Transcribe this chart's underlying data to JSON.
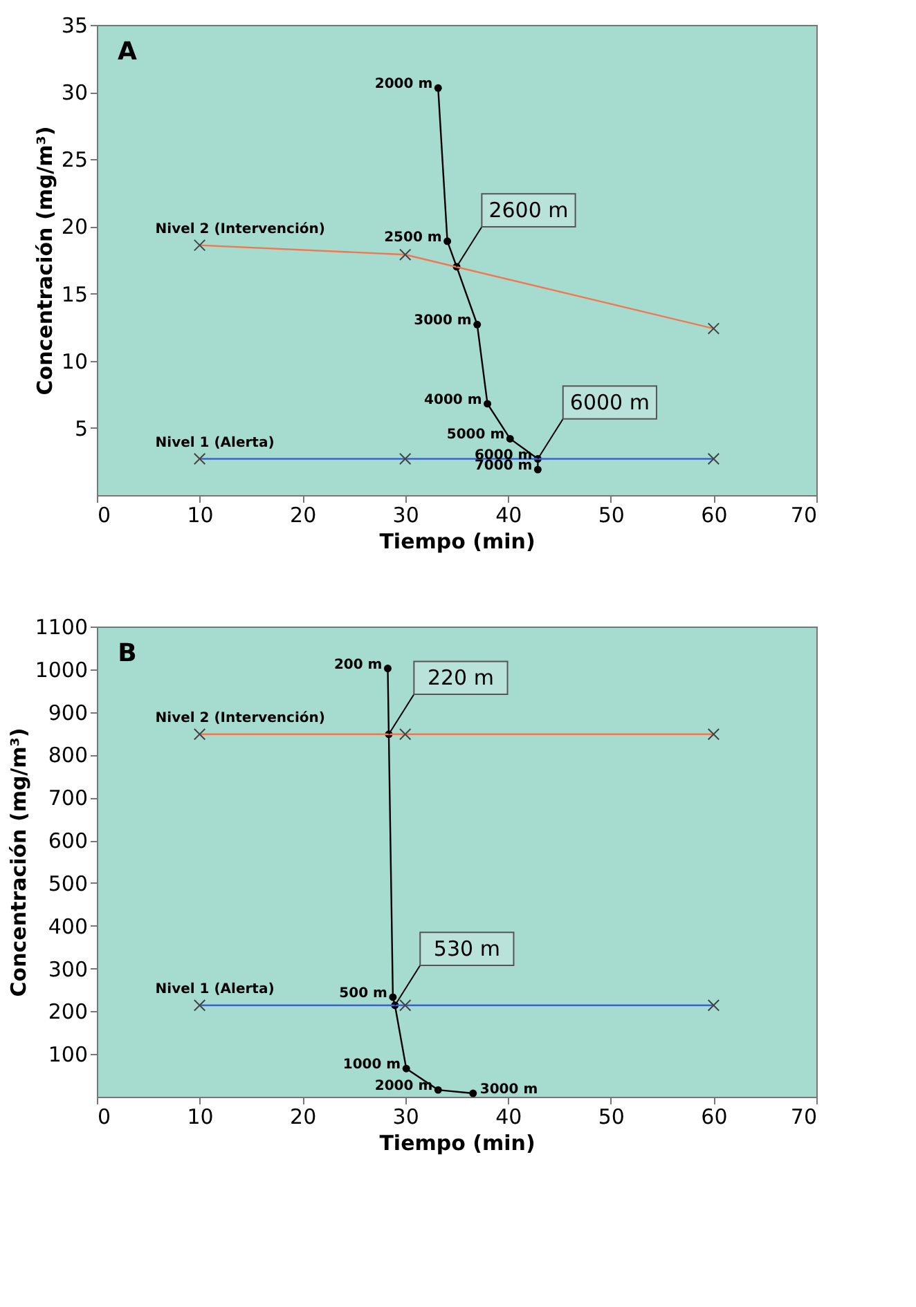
{
  "chart_data": [
    {
      "type": "line",
      "xlabel": "Tiempo (min)",
      "ylabel": "Concentración (mg/m³)",
      "xlim": [
        0,
        70
      ],
      "xticks": [
        0,
        10,
        20,
        30,
        40,
        50,
        60,
        70
      ],
      "ylim": [
        0,
        35
      ],
      "yticks": [
        5,
        10,
        15,
        20,
        25,
        30,
        35
      ],
      "grid": false,
      "series": [
        {
          "color": "#000000",
          "marker": "circle",
          "x": [
            33.2,
            34.1,
            35.0,
            37.0,
            38.0,
            40.2,
            42.9,
            42.9
          ],
          "values": [
            30.3,
            18.9,
            17.0,
            12.7,
            6.8,
            4.2,
            2.7,
            1.9
          ]
        },
        {
          "name": "Nivel 2 (Intervención)",
          "color": "#f07850",
          "marker": "cross",
          "x": [
            10,
            30,
            60
          ],
          "values": [
            18.6,
            17.9,
            12.4
          ]
        },
        {
          "name": "Nivel 1 (Alerta)",
          "color": "#3c64c8",
          "marker": "cross",
          "x": [
            10,
            30,
            60
          ],
          "values": [
            2.7,
            2.7,
            2.7
          ]
        }
      ],
      "annotations": [
        "A",
        {
          "text": "2000 m",
          "x": 33.2,
          "y": 30.3
        },
        {
          "text": "2500 m",
          "x": 34.1,
          "y": 18.9
        },
        {
          "text": "2600 m",
          "x": 35.0,
          "y": 17.0
        },
        {
          "text": "3000 m",
          "x": 37.0,
          "y": 12.7
        },
        {
          "text": "4000 m",
          "x": 38.0,
          "y": 6.8
        },
        {
          "text": "5000 m",
          "x": 40.2,
          "y": 4.2
        },
        {
          "text": "6000 m",
          "x": 42.9,
          "y": 2.7
        },
        {
          "text": "6000 m",
          "x": 42.9,
          "y": 2.7
        },
        {
          "text": "7000 m",
          "x": 42.9,
          "y": 1.9
        }
      ]
    },
    {
      "type": "line",
      "xlabel": "Tiempo (min)",
      "ylabel": "Concentración (mg/m³)",
      "xlim": [
        0,
        70
      ],
      "xticks": [
        0,
        10,
        20,
        30,
        40,
        50,
        60,
        70
      ],
      "ylim": [
        0,
        1100
      ],
      "yticks": [
        100,
        200,
        300,
        400,
        500,
        600,
        700,
        800,
        900,
        1000,
        1100
      ],
      "grid": false,
      "series": [
        {
          "color": "#000000",
          "marker": "circle",
          "x": [
            28.3,
            28.4,
            28.8,
            29.0,
            30.1,
            33.2,
            36.6
          ],
          "values": [
            1002,
            848,
            233,
            214,
            66,
            16,
            8
          ]
        },
        {
          "name": "Nivel 2 (Intervención)",
          "color": "#f07850",
          "marker": "cross",
          "x": [
            10,
            30,
            60
          ],
          "values": [
            848,
            848,
            848
          ]
        },
        {
          "name": "Nivel 1 (Alerta)",
          "color": "#3c64c8",
          "marker": "cross",
          "x": [
            10,
            30,
            60
          ],
          "values": [
            214,
            214,
            214
          ]
        }
      ],
      "annotations": [
        "B",
        {
          "text": "200 m",
          "x": 28.3,
          "y": 1002
        },
        {
          "text": "220 m",
          "x": 28.4,
          "y": 848
        },
        {
          "text": "500 m",
          "x": 28.8,
          "y": 233
        },
        {
          "text": "530 m",
          "x": 29.0,
          "y": 214
        },
        {
          "text": "1000 m",
          "x": 30.1,
          "y": 66
        },
        {
          "text": "2000 m",
          "x": 33.2,
          "y": 16
        },
        {
          "text": "3000 m",
          "x": 36.6,
          "y": 8
        }
      ]
    }
  ]
}
